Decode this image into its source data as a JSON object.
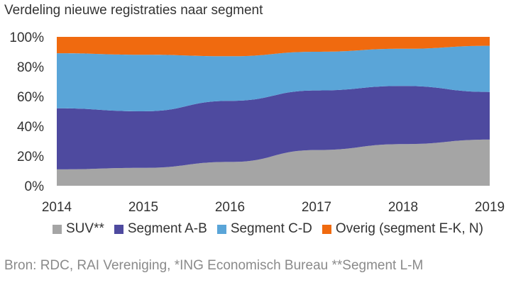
{
  "chart_data": {
    "type": "area",
    "stacked": true,
    "normalized": true,
    "title": "Verdeling nieuwe registraties naar segment",
    "x": [
      2014,
      2015,
      2016,
      2017,
      2018,
      2019
    ],
    "x_tick_labels": [
      "2014",
      "2015",
      "2016",
      "2017",
      "2018",
      "2019"
    ],
    "y_tick_labels": [
      "0%",
      "20%",
      "40%",
      "60%",
      "80%",
      "100%"
    ],
    "ylim": [
      0,
      100
    ],
    "grid": false,
    "legend_position": "bottom",
    "series": [
      {
        "name": "SUV**",
        "color": "#a5a5a5",
        "values": [
          11,
          12,
          16,
          24,
          28,
          31
        ]
      },
      {
        "name": "Segment A-B",
        "color": "#4e4a9f",
        "values": [
          41,
          38,
          41,
          40,
          39,
          32
        ]
      },
      {
        "name": "Segment C-D",
        "color": "#5aa5d8",
        "values": [
          37,
          38,
          30,
          26,
          25,
          31
        ]
      },
      {
        "name": "Overig (segment E-K, N)",
        "color": "#f06a0f",
        "values": [
          11,
          12,
          13,
          10,
          8,
          6
        ]
      }
    ]
  },
  "source": "Bron: RDC, RAI Vereniging, *ING Economisch Bureau **Segment L-M"
}
